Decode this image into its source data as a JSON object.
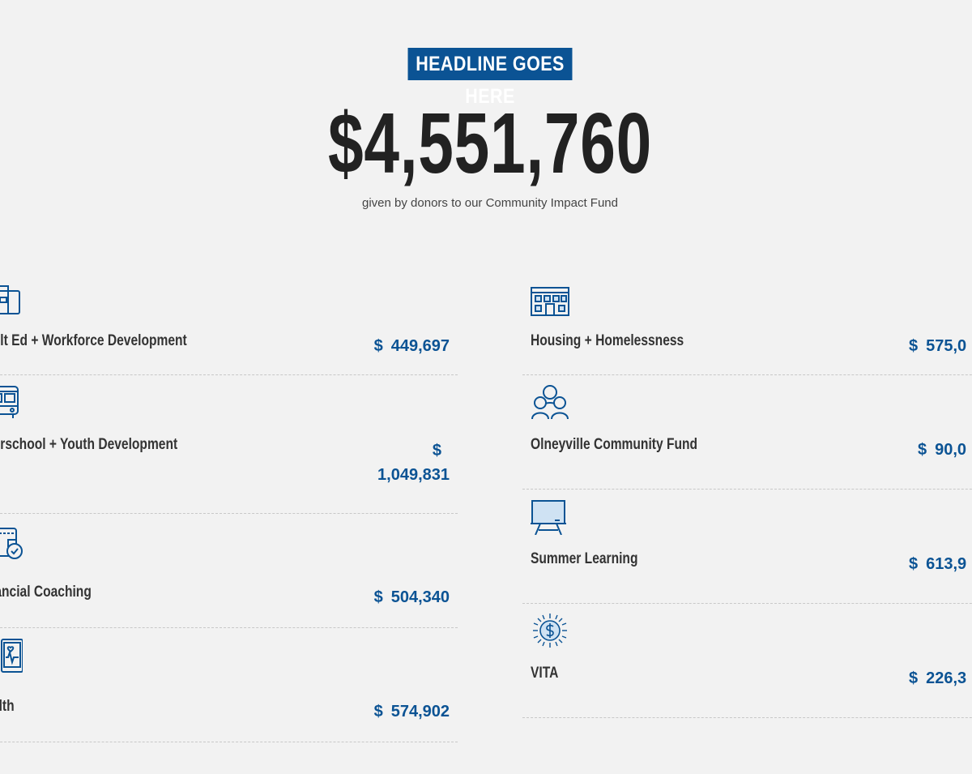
{
  "header": {
    "headline": "HEADLINE GOES HERE",
    "total": "$4,551,760",
    "subtitle": "given by donors to our Community Impact Fund"
  },
  "colors": {
    "accent": "#0b5394",
    "text": "#333333",
    "background": "#f2f2f2"
  },
  "left_items": [
    {
      "icon": "briefcase-icon",
      "label": "Adult Ed + Workforce Development",
      "currency": "$",
      "amount": "449,697"
    },
    {
      "icon": "school-bus-icon",
      "label": "Afterschool + Youth Development",
      "currency": "$",
      "amount": "1,049,831"
    },
    {
      "icon": "wallet-check-icon",
      "label": "Financial Coaching",
      "currency": "$",
      "amount": "504,340"
    },
    {
      "icon": "health-monitor-icon",
      "label": "Health",
      "currency": "$",
      "amount": "574,902"
    }
  ],
  "right_items": [
    {
      "icon": "building-icon",
      "label": "Housing + Homelessness",
      "currency": "$",
      "amount": "575,0"
    },
    {
      "icon": "people-icon",
      "label": "Olneyville Community Fund",
      "currency": "$",
      "amount": "90,0"
    },
    {
      "icon": "chalkboard-icon",
      "label": "Summer Learning",
      "currency": "$",
      "amount": "613,9"
    },
    {
      "icon": "dollar-sun-icon",
      "label": "VITA",
      "currency": "$",
      "amount": "226,3"
    }
  ]
}
